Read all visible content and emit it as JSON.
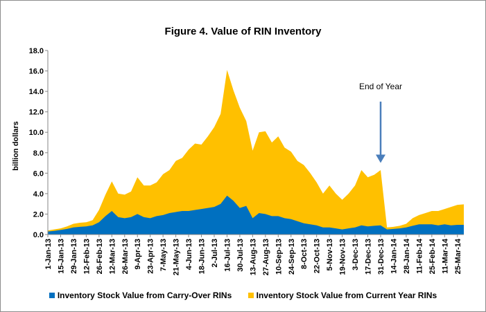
{
  "chart_data": {
    "type": "area",
    "title": "Figure 4.  Value of RIN Inventory",
    "xlabel": "",
    "ylabel": "billion dollars",
    "ylim": [
      0,
      18
    ],
    "yticks": [
      "0.0",
      "2.0",
      "4.0",
      "6.0",
      "8.0",
      "10.0",
      "12.0",
      "14.0",
      "16.0",
      "18.0"
    ],
    "grid": false,
    "legend_position": "bottom",
    "stacked": true,
    "x_tick_labels": [
      "1-Jan-13",
      "15-Jan-13",
      "29-Jan-13",
      "12-Feb-13",
      "26-Feb-13",
      "12-Mar-13",
      "26-Mar-13",
      "9-Apr-13",
      "23-Apr-13",
      "7-May-13",
      "21-May-13",
      "4-Jun-13",
      "18-Jun-13",
      "2-Jul-13",
      "16-Jul-13",
      "30-Jul-13",
      "13-Aug-13",
      "27-Aug-13",
      "10-Sep-13",
      "24-Sep-13",
      "8-Oct-13",
      "22-Oct-13",
      "5-Nov-13",
      "19-Nov-13",
      "3-Dec-13",
      "17-Dec-13",
      "31-Dec-13",
      "14-Jan-14",
      "28-Jan-14",
      "11-Feb-14",
      "25-Feb-14",
      "11-Mar-14",
      "25-Mar-14"
    ],
    "x": [
      "1-Jan-13",
      "8-Jan-13",
      "15-Jan-13",
      "22-Jan-13",
      "29-Jan-13",
      "5-Feb-13",
      "12-Feb-13",
      "19-Feb-13",
      "26-Feb-13",
      "5-Mar-13",
      "12-Mar-13",
      "19-Mar-13",
      "26-Mar-13",
      "2-Apr-13",
      "9-Apr-13",
      "16-Apr-13",
      "23-Apr-13",
      "30-Apr-13",
      "7-May-13",
      "14-May-13",
      "21-May-13",
      "28-May-13",
      "4-Jun-13",
      "11-Jun-13",
      "18-Jun-13",
      "25-Jun-13",
      "2-Jul-13",
      "9-Jul-13",
      "16-Jul-13",
      "23-Jul-13",
      "30-Jul-13",
      "6-Aug-13",
      "13-Aug-13",
      "20-Aug-13",
      "27-Aug-13",
      "3-Sep-13",
      "10-Sep-13",
      "17-Sep-13",
      "24-Sep-13",
      "1-Oct-13",
      "8-Oct-13",
      "15-Oct-13",
      "22-Oct-13",
      "29-Oct-13",
      "5-Nov-13",
      "12-Nov-13",
      "19-Nov-13",
      "26-Nov-13",
      "3-Dec-13",
      "10-Dec-13",
      "17-Dec-13",
      "24-Dec-13",
      "31-Dec-13",
      "7-Jan-14",
      "14-Jan-14",
      "21-Jan-14",
      "28-Jan-14",
      "4-Feb-14",
      "11-Feb-14",
      "18-Feb-14",
      "25-Feb-14",
      "4-Mar-14",
      "11-Mar-14",
      "18-Mar-14",
      "25-Mar-14",
      "1-Apr-14"
    ],
    "series": [
      {
        "name": "Inventory Stock Value from Carry-Over RINs",
        "color": "#0070c0",
        "values": [
          0.3,
          0.35,
          0.45,
          0.55,
          0.7,
          0.75,
          0.8,
          0.9,
          1.2,
          1.8,
          2.3,
          1.7,
          1.6,
          1.7,
          2.0,
          1.7,
          1.6,
          1.8,
          1.9,
          2.1,
          2.2,
          2.3,
          2.3,
          2.4,
          2.5,
          2.6,
          2.7,
          3.0,
          3.8,
          3.3,
          2.6,
          2.8,
          1.6,
          2.1,
          2.0,
          1.8,
          1.8,
          1.6,
          1.5,
          1.3,
          1.1,
          1.0,
          0.9,
          0.7,
          0.7,
          0.6,
          0.5,
          0.6,
          0.7,
          0.9,
          0.8,
          0.85,
          0.9,
          0.5,
          0.55,
          0.6,
          0.7,
          0.85,
          1.0,
          1.0,
          1.0,
          0.9,
          1.0,
          0.9,
          0.95,
          0.95
        ]
      },
      {
        "name": "Inventory Stock Value from Current Year RINs",
        "color": "#ffc000",
        "values": [
          0.1,
          0.15,
          0.15,
          0.25,
          0.35,
          0.4,
          0.4,
          0.5,
          1.2,
          2.1,
          2.9,
          2.3,
          2.3,
          2.5,
          3.6,
          3.1,
          3.2,
          3.3,
          4.0,
          4.2,
          5.0,
          5.2,
          6.0,
          6.5,
          6.3,
          7.0,
          7.8,
          8.8,
          12.3,
          10.8,
          9.8,
          8.3,
          6.6,
          7.9,
          8.1,
          7.2,
          7.8,
          6.9,
          6.6,
          5.9,
          5.7,
          5.0,
          4.2,
          3.3,
          4.1,
          3.4,
          2.9,
          3.4,
          4.1,
          5.4,
          4.8,
          5.0,
          5.4,
          0.2,
          0.2,
          0.25,
          0.35,
          0.75,
          0.9,
          1.1,
          1.3,
          1.4,
          1.5,
          1.8,
          1.95,
          2.0
        ]
      }
    ],
    "annotations": [
      {
        "text": "End of Year",
        "x": "31-Dec-13",
        "arrow_from_y": 13.0,
        "arrow_to_y": 7.0
      }
    ]
  }
}
